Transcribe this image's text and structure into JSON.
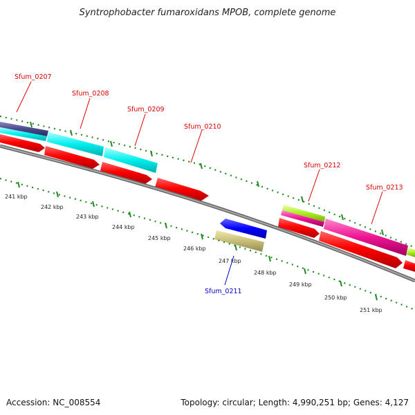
{
  "title": "Syntrophobacter fumaroxidans MPOB, complete genome",
  "accession_text": "Accession: NC_008554",
  "topology_text": "Topology: circular; Length: 4,990,251 bp; Genes: 4,127",
  "gene_labels": [
    {
      "id": "sfum-0207",
      "text": "Sfum_0207",
      "color": "#dd0000"
    },
    {
      "id": "sfum-0208",
      "text": "Sfum_0208",
      "color": "#dd0000"
    },
    {
      "id": "sfum-0209",
      "text": "Sfum_0209",
      "color": "#dd0000"
    },
    {
      "id": "sfum-0210",
      "text": "Sfum_0210",
      "color": "#dd0000"
    },
    {
      "id": "sfum-0211",
      "text": "Sfum_0211",
      "color": "#0000cc"
    },
    {
      "id": "sfum-0212",
      "text": "Sfum_0212",
      "color": "#dd0000"
    },
    {
      "id": "sfum-0213",
      "text": "Sfum_0213",
      "color": "#dd0000"
    }
  ],
  "kbp_ticks": [
    "241 kbp",
    "242 kbp",
    "243 kbp",
    "244 kbp",
    "245 kbp",
    "246 kbp",
    "247 kbp",
    "248 kbp",
    "249 kbp",
    "250 kbp",
    "251 kbp"
  ],
  "colors": {
    "cds_forward": "#ff0000",
    "cds_reverse": "#0000ff",
    "navy_track": "#4a4a8a",
    "cyan_track": "#00eeee",
    "magenta_track": "#ee1493",
    "lime_track": "#aaee22",
    "khaki_track": "#c8be78",
    "backbone": "#888888",
    "tick": "#228822"
  }
}
